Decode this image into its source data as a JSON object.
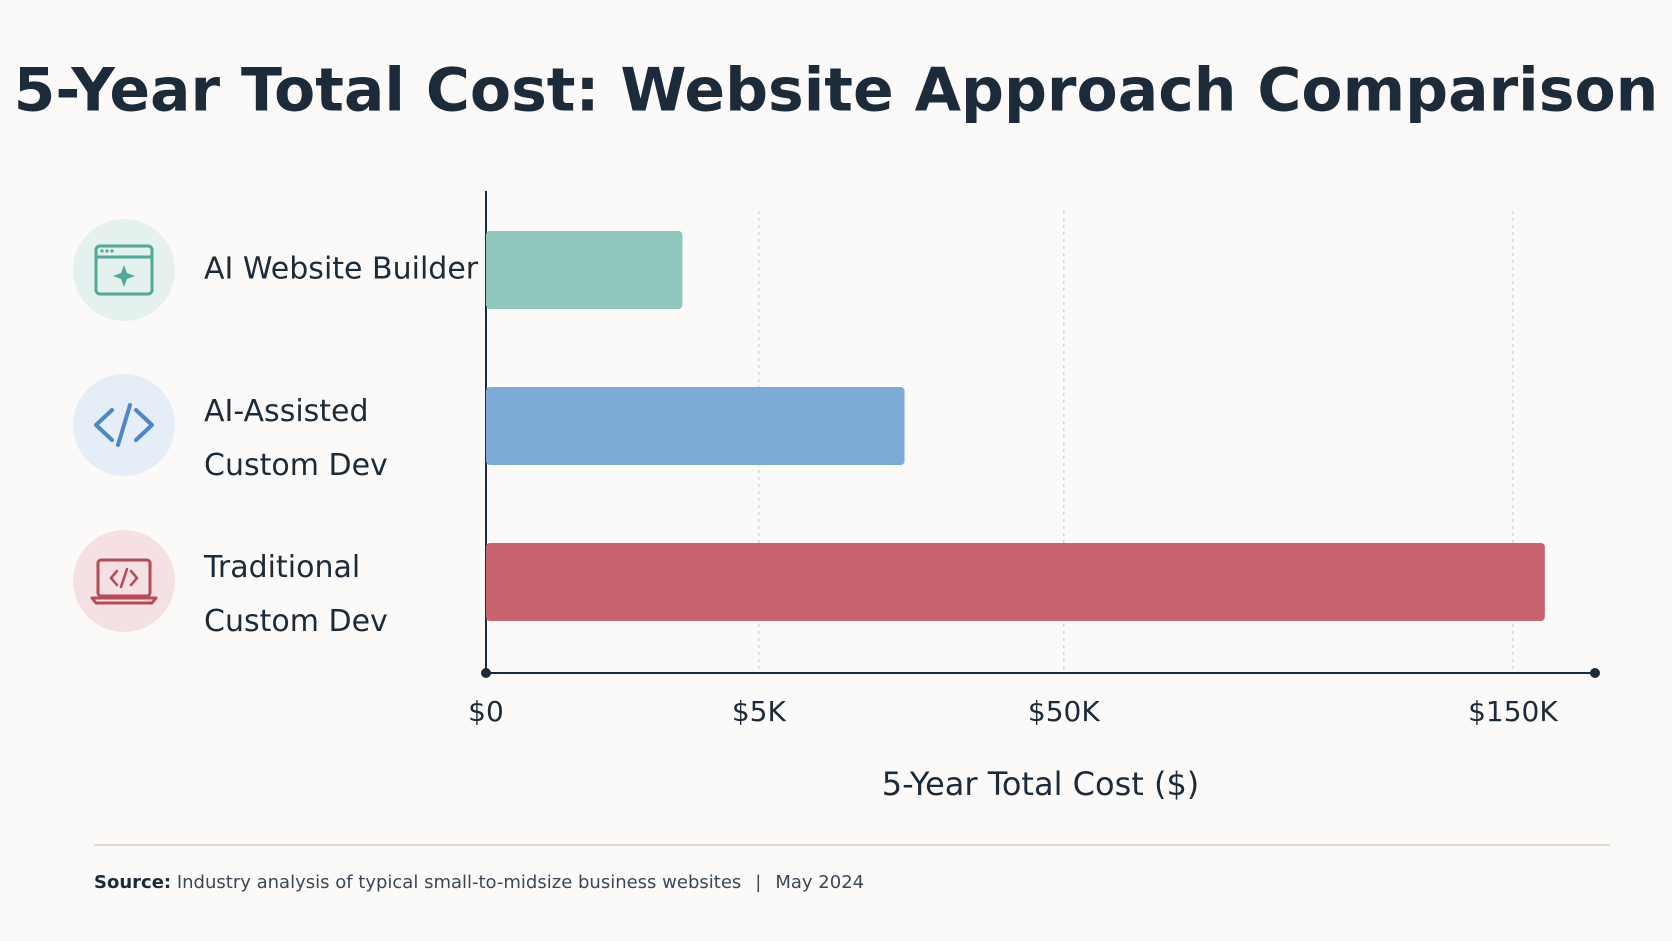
{
  "chart_data": {
    "type": "hbar",
    "title": "5-Year Total Cost: Website Approach Comparison",
    "categories": [
      "AI Website Builder",
      "AI-Assisted Custom Dev",
      "Traditional Custom Dev"
    ],
    "values": [
      3600,
      26500,
      157000
    ],
    "colors": [
      "#8fc7bd",
      "#7eaad8",
      "#c8646f"
    ],
    "xlabel": "5-Year Total Cost ($)",
    "xlim": [
      0,
      168000
    ],
    "xticks": [
      {
        "value": 0,
        "label": "$0"
      },
      {
        "value": 5000,
        "label": "$5K"
      },
      {
        "value": 50000,
        "label": "$50K"
      },
      {
        "value": 150000,
        "label": "$150K"
      }
    ],
    "grid": true
  },
  "footer": {
    "source_label": "Source:",
    "source": "Industry analysis of typical small-to-midsize business websites",
    "separator": "|",
    "date": "May 2024"
  }
}
